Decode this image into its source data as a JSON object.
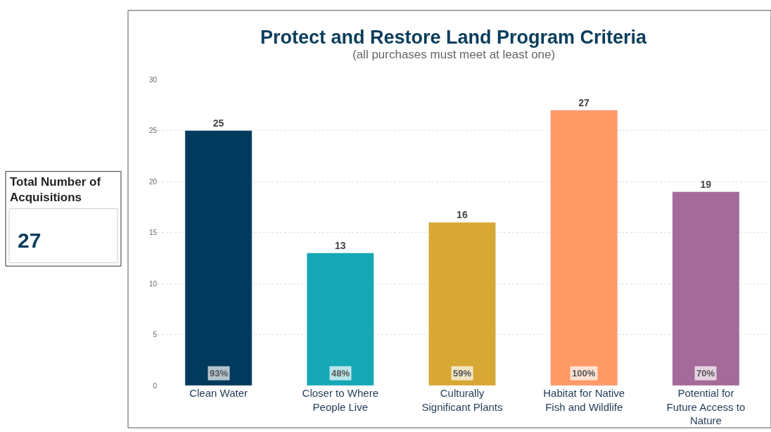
{
  "chart_data": [
    {
      "type": "other",
      "title": "Total Number of Acquisitions",
      "annotations": [
        "27"
      ]
    },
    {
      "type": "bar",
      "title": "Protect and Restore Land Program Criteria",
      "subtitle": "(all purchases must meet at least one)",
      "categories": [
        "Clean Water",
        "Closer to Where People Live",
        "Culturally Significant Plants",
        "Habitat for Native Fish and Wildlife",
        "Potential for Future Access to Nature"
      ],
      "values": [
        25,
        13,
        16,
        27,
        19
      ],
      "colors": [
        "#003a5d",
        "#16a8b5",
        "#d8a834",
        "#ff9966",
        "#a56a99"
      ],
      "annotations": [
        {
          "text": "93%",
          "x": "Clean Water",
          "y": 0
        },
        {
          "text": "48%",
          "x": "Closer to Where People Live",
          "y": 0
        },
        {
          "text": "59%",
          "x": "Culturally Significant Plants",
          "y": 0
        },
        {
          "text": "100%",
          "x": "Habitat for Native Fish and Wildlife",
          "y": 0
        },
        {
          "text": "70%",
          "x": "Potential for Future Access to Nature",
          "y": 0
        }
      ],
      "data_labels": true,
      "ylim": [
        0,
        30
      ],
      "yticks": [
        0,
        5,
        10,
        15,
        20,
        25,
        30
      ],
      "grid": "y"
    }
  ]
}
